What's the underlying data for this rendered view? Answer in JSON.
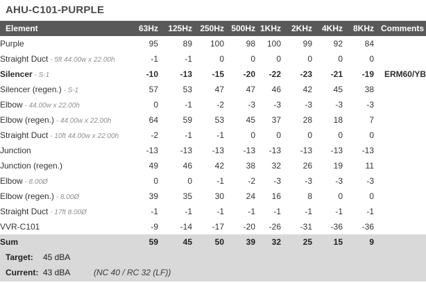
{
  "title": "AHU-C101-PURPLE",
  "colors": {
    "header_bg": "#595959",
    "header_text": "#ffffff",
    "footer_bg": "#d9d9d9",
    "body_text": "#333333",
    "descriptor_text": "#8f8f8f"
  },
  "table": {
    "columns": [
      "Element",
      "63Hz",
      "125Hz",
      "250Hz",
      "500Hz",
      "1KHz",
      "2KHz",
      "4KHz",
      "8KHz",
      "Comments"
    ],
    "rows": [
      {
        "label": "Purple",
        "desc": "",
        "values": [
          95,
          89,
          100,
          98,
          100,
          99,
          92,
          84
        ],
        "comment": "",
        "bold": false
      },
      {
        "label": "Straight Duct",
        "desc": "5ft 44.00w x 22.00h",
        "values": [
          -1,
          -1,
          0,
          0,
          0,
          0,
          0,
          0
        ],
        "comment": "",
        "bold": false
      },
      {
        "label": "Silencer",
        "desc": "S-1",
        "values": [
          -10,
          -13,
          -15,
          -20,
          -22,
          -23,
          -21,
          -19
        ],
        "comment": "ERM60/YB",
        "bold": true
      },
      {
        "label": "Silencer (regen.)",
        "desc": "S-1",
        "values": [
          57,
          53,
          47,
          47,
          46,
          42,
          45,
          38
        ],
        "comment": "",
        "bold": false
      },
      {
        "label": "Elbow",
        "desc": "44.00w x 22.00h",
        "values": [
          0,
          -1,
          -2,
          -3,
          -3,
          -3,
          -3,
          -3
        ],
        "comment": "",
        "bold": false
      },
      {
        "label": "Elbow (regen.)",
        "desc": "44.00w x 22.00h",
        "values": [
          64,
          59,
          53,
          45,
          37,
          28,
          18,
          7
        ],
        "comment": "",
        "bold": false
      },
      {
        "label": "Straight Duct",
        "desc": "10ft 44.00w x 22.00h",
        "values": [
          -2,
          -1,
          -1,
          0,
          0,
          0,
          0,
          0
        ],
        "comment": "",
        "bold": false
      },
      {
        "label": "Junction",
        "desc": "",
        "values": [
          -13,
          -13,
          -13,
          -13,
          -13,
          -13,
          -13,
          -13
        ],
        "comment": "",
        "bold": false
      },
      {
        "label": "Junction (regen.)",
        "desc": "",
        "values": [
          49,
          46,
          42,
          38,
          32,
          26,
          19,
          11
        ],
        "comment": "",
        "bold": false
      },
      {
        "label": "Elbow",
        "desc": "8.00Ø",
        "values": [
          0,
          0,
          -1,
          -2,
          -3,
          -3,
          -3,
          -3
        ],
        "comment": "",
        "bold": false
      },
      {
        "label": "Elbow (regen.)",
        "desc": "8.00Ø",
        "values": [
          39,
          35,
          30,
          24,
          16,
          8,
          0,
          0
        ],
        "comment": "",
        "bold": false
      },
      {
        "label": "Straight Duct",
        "desc": "17ft 8.00Ø",
        "values": [
          -1,
          -1,
          -1,
          -1,
          -1,
          -1,
          -1,
          -1
        ],
        "comment": "",
        "bold": false
      },
      {
        "label": "VVR-C101",
        "desc": "",
        "values": [
          -9,
          -14,
          -17,
          -20,
          -26,
          -31,
          -36,
          -36
        ],
        "comment": "",
        "bold": false
      }
    ],
    "sum_row": {
      "label": "Sum",
      "values": [
        59,
        45,
        50,
        39,
        32,
        25,
        15,
        9
      ],
      "comment": ""
    }
  },
  "footer": {
    "target_label": "Target:",
    "target_value": "45 dBA",
    "target_note": "",
    "current_label": "Current:",
    "current_value": "43 dBA",
    "current_note": "(NC 40  /  RC 32 (LF))"
  }
}
